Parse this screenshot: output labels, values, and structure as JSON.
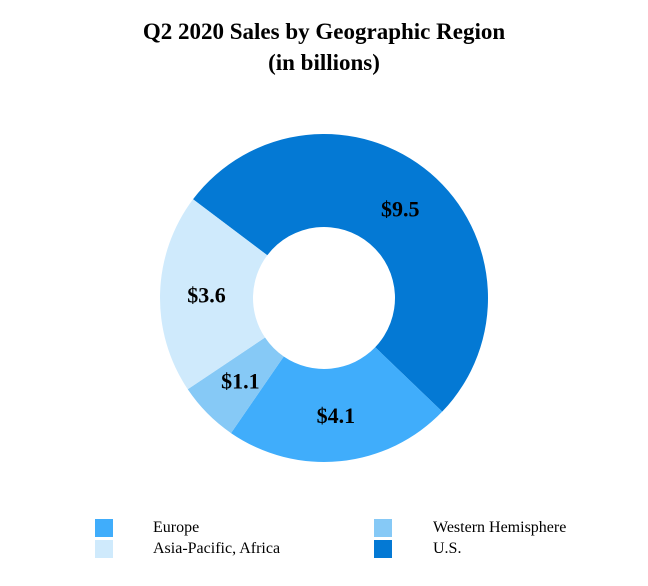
{
  "chart_data": {
    "type": "pie",
    "variant": "donut",
    "title": "Q2 2020 Sales by Geographic Region",
    "subtitle": "(in billions)",
    "slices": [
      {
        "name": "U.S.",
        "value": 9.5,
        "label": "$9.5",
        "color": "#0479d4"
      },
      {
        "name": "Europe",
        "value": 4.1,
        "label": "$4.1",
        "color": "#40adfb"
      },
      {
        "name": "Western Hemisphere",
        "value": 1.1,
        "label": "$1.1",
        "color": "#86c9f6"
      },
      {
        "name": "Asia-Pacific, Africa",
        "value": 3.6,
        "label": "$3.6",
        "color": "#cfeafc"
      }
    ],
    "legend": {
      "placement": "bottom",
      "items": [
        {
          "label": "Europe",
          "color": "#40adfb"
        },
        {
          "label": "Asia-Pacific, Africa",
          "color": "#cfeafc"
        },
        {
          "label": "Western Hemisphere",
          "color": "#86c9f6"
        },
        {
          "label": "U.S.",
          "color": "#0479d4"
        }
      ]
    }
  }
}
